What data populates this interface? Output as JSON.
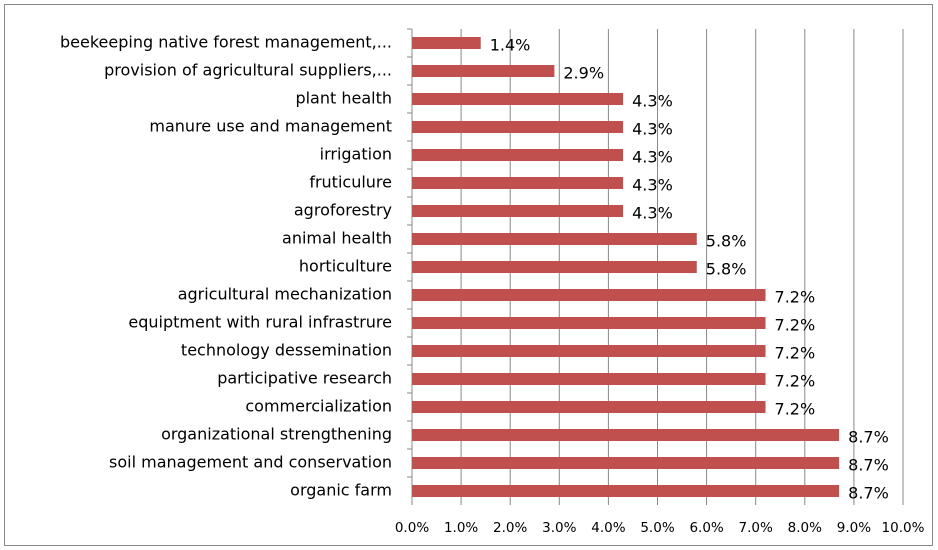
{
  "chart_data": {
    "type": "bar",
    "orientation": "horizontal",
    "color": "#c0504d",
    "grid": true,
    "categories": [
      "beekeeping native forest management,...",
      "provision of agricultural suppliers,...",
      "plant health",
      "manure use and management",
      "irrigation",
      "fruticulure",
      "agroforestry",
      "animal health",
      "horticulture",
      "agricultural mechanization",
      "equiptment with rural infrastrure",
      "technology dessemination",
      "participative research",
      "commercialization",
      "organizational strengthening",
      "soil management and conservation",
      "organic farm"
    ],
    "values": [
      1.4,
      2.9,
      4.3,
      4.3,
      4.3,
      4.3,
      4.3,
      5.8,
      5.8,
      7.2,
      7.2,
      7.2,
      7.2,
      7.2,
      8.7,
      8.7,
      8.7
    ],
    "value_labels": [
      "1.4%",
      "2.9%",
      "4.3%",
      "4.3%",
      "4.3%",
      "4.3%",
      "4.3%",
      "5.8%",
      "5.8%",
      "7.2%",
      "7.2%",
      "7.2%",
      "7.2%",
      "7.2%",
      "8.7%",
      "8.7%",
      "8.7%"
    ],
    "xlim": [
      0,
      10
    ],
    "xticks": [
      {
        "value": 0,
        "label": "0.0%"
      },
      {
        "value": 1,
        "label": "1.0%"
      },
      {
        "value": 2,
        "label": "2.0%"
      },
      {
        "value": 3,
        "label": "3.0%"
      },
      {
        "value": 4,
        "label": "4.0%"
      },
      {
        "value": 5,
        "label": "5.0%"
      },
      {
        "value": 6,
        "label": "6.0%"
      },
      {
        "value": 7,
        "label": "7.0%"
      },
      {
        "value": 8,
        "label": "8.0%"
      },
      {
        "value": 9,
        "label": "9.0%"
      },
      {
        "value": 10,
        "label": "10.0%"
      }
    ]
  }
}
